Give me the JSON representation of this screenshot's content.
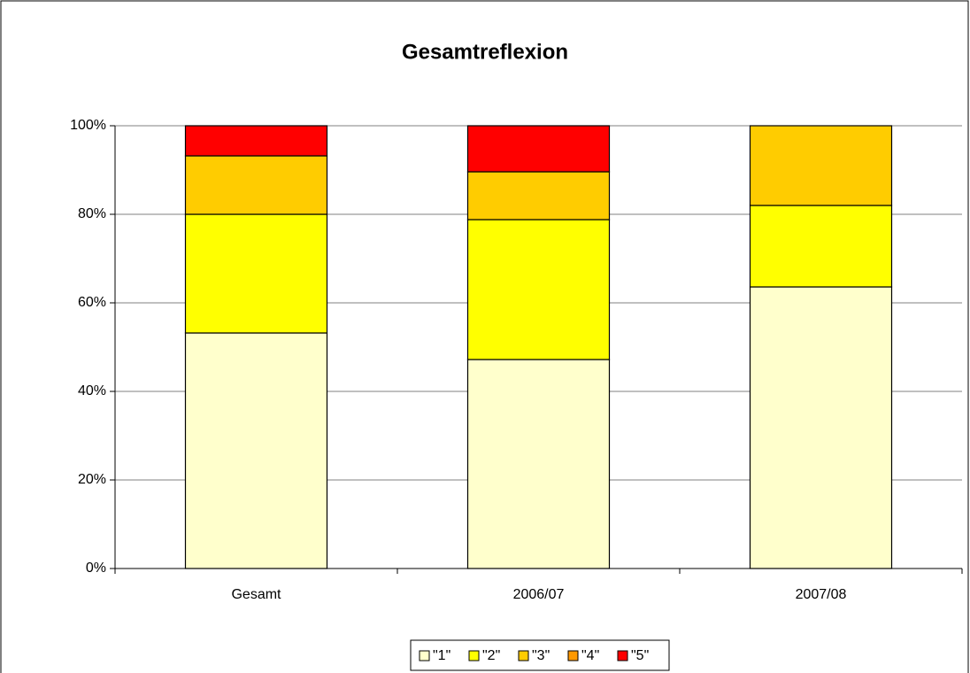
{
  "chart_data": {
    "type": "stacked_bar",
    "title": "Gesamtreflexion",
    "categories": [
      "Gesamt",
      "2006/07",
      "2007/08"
    ],
    "series": [
      {
        "name": "\"1\"",
        "color": "#ffffcc",
        "values": [
          53.2,
          47.2,
          63.6
        ]
      },
      {
        "name": "\"2\"",
        "color": "#ffff00",
        "values": [
          26.8,
          31.6,
          18.4
        ]
      },
      {
        "name": "\"3\"",
        "color": "#ffcc00",
        "values": [
          13.2,
          10.8,
          18.0
        ]
      },
      {
        "name": "\"4\"",
        "color": "#ff9900",
        "values": [
          0,
          0,
          0
        ]
      },
      {
        "name": "\"5\"",
        "color": "#ff0000",
        "values": [
          6.8,
          10.4,
          0
        ]
      }
    ],
    "ylim": [
      0,
      100
    ],
    "yticks": [
      {
        "value": 0,
        "label": "0%"
      },
      {
        "value": 20,
        "label": "20%"
      },
      {
        "value": 40,
        "label": "40%"
      },
      {
        "value": 60,
        "label": "60%"
      },
      {
        "value": 80,
        "label": "80%"
      },
      {
        "value": 100,
        "label": "100%"
      }
    ],
    "grid": true,
    "legend": "bottom"
  }
}
